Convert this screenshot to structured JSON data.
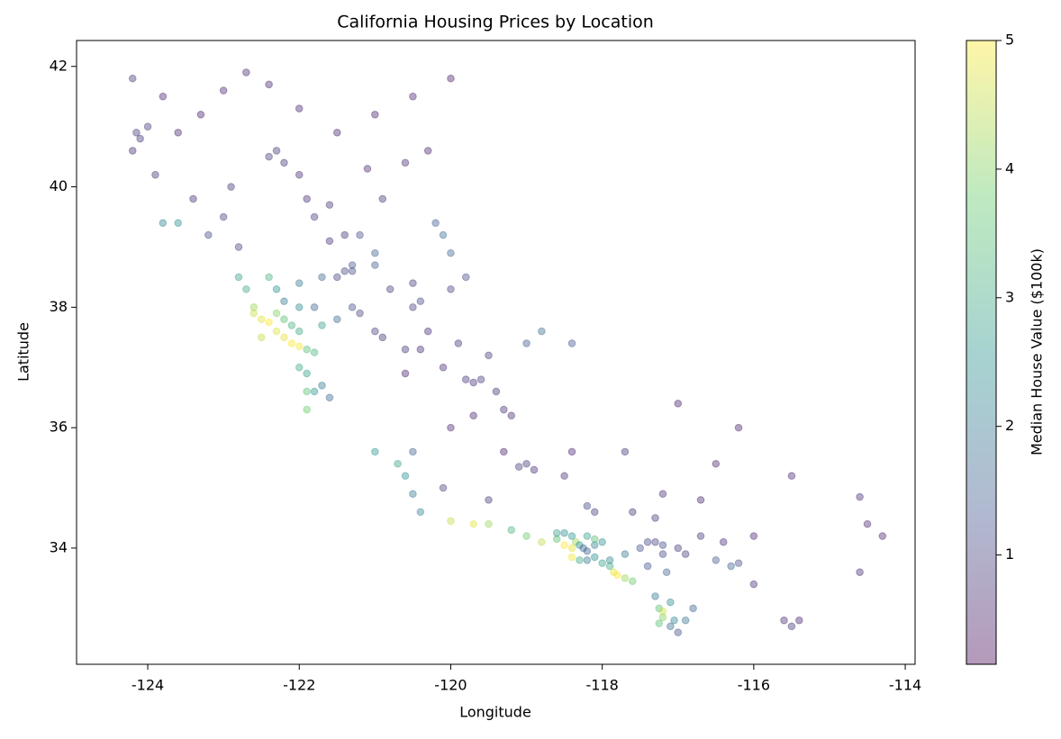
{
  "chart_data": {
    "type": "scatter",
    "title": "California Housing Prices by Location",
    "x_label": "Longitude",
    "y_label": "Latitude",
    "colorbar_label": "Median House Value ($100k)",
    "xlim": [
      -124.94,
      -113.87
    ],
    "ylim": [
      32.07,
      42.43
    ],
    "xticks": [
      -124,
      -122,
      -120,
      -118,
      -116,
      -114
    ],
    "yticks": [
      34,
      36,
      38,
      40,
      42
    ],
    "clim": [
      0.15,
      5.0
    ],
    "cticks": [
      1,
      2,
      3,
      4,
      5
    ],
    "colormap": [
      "#440154",
      "#3b528b",
      "#21918c",
      "#5ec962",
      "#fde725"
    ],
    "alpha": 0.4,
    "x": [
      -124.2,
      -124.15,
      -124.1,
      -124.2,
      -124.0,
      -123.8,
      -123.6,
      -123.3,
      -123.0,
      -122.7,
      -122.4,
      -122.3,
      -122.4,
      -122.2,
      -122.0,
      -121.9,
      -121.6,
      -121.8,
      -121.6,
      -121.4,
      -121.2,
      -121.0,
      -121.3,
      -121.4,
      -121.5,
      -121.3,
      -121.0,
      -120.8,
      -120.5,
      -120.4,
      -120.0,
      -120.1,
      -120.2,
      -120.9,
      -120.6,
      -120.3,
      -121.5,
      -121.0,
      -120.5,
      -120.0,
      -122.9,
      -123.0,
      -123.2,
      -122.8,
      -123.6,
      -123.8,
      -122.5,
      -122.4,
      -122.3,
      -122.2,
      -122.1,
      -122.0,
      -122.2,
      -122.1,
      -122.0,
      -121.9,
      -121.8,
      -122.0,
      -121.9,
      -121.8,
      -121.9,
      -122.5,
      -122.3,
      -122.6,
      -122.7,
      -122.8,
      -122.3,
      -122.0,
      -121.8,
      -122.2,
      -121.7,
      -121.5,
      -122.6,
      -121.7,
      -121.6,
      -121.9,
      -121.3,
      -121.2,
      -121.0,
      -120.9,
      -120.6,
      -120.4,
      -120.1,
      -119.8,
      -119.7,
      -119.6,
      -119.4,
      -119.3,
      -119.2,
      -119.0,
      -119.1,
      -118.9,
      -119.3,
      -119.7,
      -120.0,
      -120.6,
      -120.3,
      -119.9,
      -119.5,
      -119.0,
      -118.4,
      -118.8,
      -120.5,
      -120.0,
      -119.8,
      -121.0,
      -120.7,
      -120.6,
      -120.5,
      -120.4,
      -120.0,
      -119.7,
      -119.5,
      -119.2,
      -119.0,
      -120.5,
      -120.1,
      -119.5,
      -118.8,
      -118.6,
      -118.5,
      -118.4,
      -118.35,
      -118.3,
      -118.25,
      -118.2,
      -118.1,
      -118.0,
      -118.1,
      -118.2,
      -118.4,
      -118.5,
      -118.6,
      -118.3,
      -118.4,
      -118.2,
      -118.1,
      -118.0,
      -117.9,
      -117.85,
      -117.8,
      -117.7,
      -117.6,
      -117.9,
      -117.7,
      -117.5,
      -117.4,
      -117.3,
      -117.2,
      -117.0,
      -116.9,
      -117.2,
      -117.4,
      -117.15,
      -117.3,
      -117.25,
      -117.2,
      -117.25,
      -117.1,
      -117.0,
      -117.05,
      -116.9,
      -116.8,
      -117.2,
      -117.1,
      -116.7,
      -116.4,
      -116.2,
      -116.3,
      -116.5,
      -116.0,
      -115.6,
      -115.5,
      -115.4,
      -114.6,
      -114.6,
      -114.5,
      -114.3,
      -115.5,
      -116.2,
      -116.5,
      -117.0,
      -117.3,
      -117.6,
      -118.1,
      -118.2,
      -117.2,
      -117.7,
      -118.4,
      -118.5,
      -116.7,
      -116.0,
      -122.0,
      -122.4,
      -121.7,
      -123.4,
      -121.1,
      -123.9,
      -122.0
    ],
    "values": [
      41.8,
      40.9,
      40.8,
      40.6,
      41.0,
      41.5,
      40.9,
      41.2,
      41.6,
      41.9,
      41.7,
      40.6,
      40.5,
      40.4,
      40.2,
      39.8,
      39.7,
      39.5,
      39.1,
      39.2,
      39.2,
      38.9,
      38.7,
      38.6,
      38.5,
      38.6,
      38.7,
      38.3,
      38.0,
      38.1,
      38.9,
      39.2,
      39.4,
      39.8,
      40.4,
      40.6,
      40.9,
      41.2,
      41.5,
      41.8,
      40.0,
      39.5,
      39.2,
      39.0,
      39.4,
      39.4,
      37.8,
      37.75,
      37.9,
      37.8,
      37.7,
      37.6,
      37.5,
      37.4,
      37.35,
      37.3,
      37.25,
      37.0,
      36.9,
      36.6,
      36.6,
      37.5,
      37.6,
      38.0,
      38.3,
      38.5,
      38.3,
      38.0,
      38.0,
      38.1,
      37.7,
      37.8,
      37.9,
      36.7,
      36.5,
      36.3,
      38.0,
      37.9,
      37.6,
      37.5,
      37.3,
      37.3,
      37.0,
      36.8,
      36.75,
      36.8,
      36.6,
      36.3,
      36.2,
      35.4,
      35.35,
      35.3,
      35.6,
      36.2,
      36.0,
      36.9,
      37.6,
      37.4,
      37.2,
      37.4,
      37.4,
      37.6,
      38.4,
      38.3,
      38.5,
      35.6,
      35.4,
      35.2,
      34.9,
      34.6,
      34.45,
      34.4,
      34.4,
      34.3,
      34.2,
      35.6,
      35.0,
      34.8,
      34.1,
      34.15,
      34.05,
      34.0,
      34.1,
      34.05,
      34.0,
      33.95,
      34.05,
      34.1,
      34.15,
      34.2,
      34.2,
      34.25,
      34.25,
      33.8,
      33.85,
      33.8,
      33.85,
      33.75,
      33.7,
      33.6,
      33.55,
      33.5,
      33.45,
      33.8,
      33.9,
      34.0,
      34.1,
      34.1,
      34.05,
      34.0,
      33.9,
      33.9,
      33.7,
      33.6,
      33.2,
      33.0,
      32.85,
      32.75,
      32.7,
      32.6,
      32.8,
      32.8,
      33.0,
      32.95,
      33.1,
      34.2,
      34.1,
      33.75,
      33.7,
      33.8,
      33.4,
      32.8,
      32.7,
      32.8,
      34.85,
      33.6,
      34.4,
      34.2,
      35.2,
      36.0,
      35.4,
      36.4,
      34.5,
      34.6,
      34.6,
      34.7,
      34.9,
      35.6,
      35.6,
      35.2,
      34.8,
      34.2,
      38.4,
      38.5,
      38.5,
      39.8,
      40.3,
      40.2,
      41.3
    ],
    "color_values": [
      0.8,
      0.9,
      0.8,
      0.7,
      0.9,
      0.6,
      0.6,
      0.5,
      0.6,
      0.7,
      0.6,
      0.8,
      0.9,
      0.8,
      0.7,
      0.7,
      0.8,
      0.9,
      0.7,
      0.8,
      1.2,
      1.5,
      1.3,
      1.1,
      1.0,
      1.2,
      1.4,
      0.9,
      1.0,
      1.1,
      1.6,
      1.8,
      1.4,
      0.8,
      0.7,
      0.6,
      0.6,
      0.5,
      0.6,
      0.5,
      0.8,
      0.9,
      1.1,
      1.0,
      2.5,
      2.2,
      4.8,
      5.0,
      4.0,
      3.5,
      3.2,
      3.0,
      4.8,
      5.0,
      4.9,
      3.5,
      3.2,
      3.0,
      2.8,
      2.5,
      3.5,
      4.5,
      4.7,
      4.2,
      3.0,
      2.8,
      2.5,
      2.4,
      1.6,
      2.0,
      2.8,
      1.7,
      4.6,
      2.0,
      1.6,
      3.8,
      1.2,
      1.0,
      1.0,
      0.8,
      0.8,
      0.7,
      0.7,
      0.8,
      0.7,
      0.9,
      0.7,
      0.7,
      0.6,
      0.8,
      0.9,
      0.7,
      0.5,
      0.6,
      0.6,
      0.6,
      0.7,
      0.8,
      0.9,
      1.4,
      1.3,
      1.8,
      0.9,
      1.0,
      1.2,
      2.6,
      2.8,
      2.5,
      2.0,
      2.2,
      4.5,
      4.8,
      4.2,
      3.2,
      3.8,
      1.5,
      1.0,
      0.9,
      4.5,
      3.5,
      5.0,
      4.8,
      4.2,
      2.5,
      1.6,
      1.5,
      2.2,
      2.5,
      3.5,
      2.8,
      2.6,
      2.4,
      2.8,
      3.0,
      4.9,
      2.0,
      2.5,
      2.8,
      3.0,
      4.8,
      5.0,
      4.2,
      3.8,
      2.3,
      2.0,
      1.3,
      1.1,
      1.0,
      1.2,
      0.9,
      0.9,
      1.1,
      1.3,
      1.6,
      2.0,
      3.5,
      4.0,
      3.5,
      1.8,
      1.2,
      2.2,
      1.9,
      1.5,
      4.6,
      2.4,
      0.8,
      0.7,
      1.2,
      1.5,
      1.4,
      0.7,
      0.7,
      0.8,
      0.6,
      0.7,
      0.7,
      0.6,
      0.6,
      0.6,
      0.5,
      0.6,
      0.5,
      0.9,
      0.8,
      0.9,
      1.1,
      0.7,
      0.8,
      0.6,
      0.7,
      0.6,
      0.6,
      2.0,
      3.2,
      1.6,
      0.7,
      0.6,
      0.8,
      0.6
    ]
  }
}
